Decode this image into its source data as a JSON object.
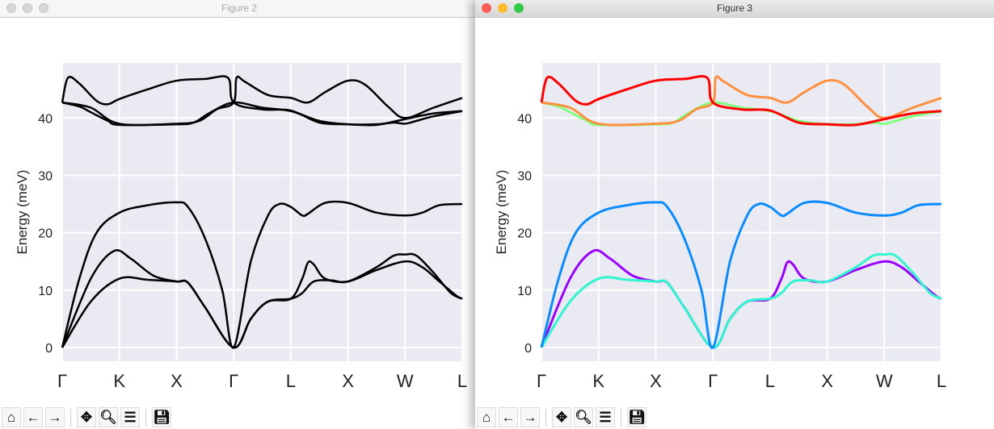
{
  "windows": [
    {
      "title": "Figure 2",
      "active": false,
      "colored": false
    },
    {
      "title": "Figure 3",
      "active": true,
      "colored": true
    }
  ],
  "toolbar": [
    {
      "icon": "home-icon",
      "glyph": "⌂",
      "name": "home-button"
    },
    {
      "icon": "arrow-left-icon",
      "glyph": "←",
      "name": "back-button"
    },
    {
      "icon": "arrow-right-icon",
      "glyph": "→",
      "name": "forward-button"
    },
    {
      "sep": true
    },
    {
      "icon": "move-icon",
      "glyph": "✥",
      "name": "pan-button"
    },
    {
      "icon": "magnifier-icon",
      "glyph": "🔍︎",
      "name": "zoom-button"
    },
    {
      "icon": "sliders-icon",
      "glyph": "☰",
      "name": "configure-subplots-button"
    },
    {
      "sep": true
    },
    {
      "icon": "save-icon",
      "glyph": "💾︎",
      "name": "save-button"
    }
  ],
  "traffic_light_colors": [
    "#fc5b57",
    "#fdbc2e",
    "#34c84a"
  ],
  "chart_data": {
    "type": "line",
    "ylabel": "Energy (meV)",
    "xticks": [
      "Γ",
      "K",
      "X",
      "Γ",
      "L",
      "X",
      "W",
      "L"
    ],
    "yticks": [
      0,
      10,
      20,
      30,
      40
    ],
    "ylim": [
      -2.4,
      49.6
    ],
    "grid": true,
    "background": "#eaeaf2",
    "series": [
      {
        "color": "#9a00ff",
        "points": [
          [
            0,
            0
          ],
          [
            0.5,
            12
          ],
          [
            0.9,
            16.8
          ],
          [
            1.2,
            15.5
          ],
          [
            1.6,
            12.5
          ],
          [
            2,
            11.5
          ],
          [
            2.2,
            11.3
          ],
          [
            2.5,
            7
          ],
          [
            3,
            0
          ],
          [
            3.3,
            5
          ],
          [
            3.6,
            8
          ],
          [
            4,
            8.5
          ],
          [
            4.2,
            12
          ],
          [
            4.3,
            14.8
          ],
          [
            4.4,
            14.5
          ],
          [
            4.6,
            12
          ],
          [
            5,
            11.5
          ],
          [
            5.5,
            13.5
          ],
          [
            6,
            15
          ],
          [
            6.3,
            14
          ],
          [
            6.6,
            11.5
          ],
          [
            6.9,
            9
          ],
          [
            7,
            8.5
          ]
        ]
      },
      {
        "color": "#2ff5d0",
        "points": [
          [
            0,
            0
          ],
          [
            0.5,
            8
          ],
          [
            1,
            12
          ],
          [
            1.5,
            11.8
          ],
          [
            2,
            11.5
          ],
          [
            2.2,
            11.3
          ],
          [
            2.5,
            7
          ],
          [
            3,
            0
          ],
          [
            3.3,
            5
          ],
          [
            3.6,
            8
          ],
          [
            4,
            8.5
          ],
          [
            4.2,
            9.5
          ],
          [
            4.4,
            11.5
          ],
          [
            4.7,
            11.7
          ],
          [
            5,
            11.5
          ],
          [
            5.5,
            14
          ],
          [
            5.8,
            16
          ],
          [
            6,
            16.2
          ],
          [
            6.2,
            16
          ],
          [
            6.5,
            13
          ],
          [
            6.8,
            9.5
          ],
          [
            7,
            8.5
          ]
        ]
      },
      {
        "color": "#0a8cff",
        "points": [
          [
            0,
            0
          ],
          [
            0.3,
            12
          ],
          [
            0.6,
            20
          ],
          [
            1,
            23.5
          ],
          [
            1.5,
            24.8
          ],
          [
            2,
            25.3
          ],
          [
            2.2,
            24.5
          ],
          [
            2.5,
            19
          ],
          [
            2.8,
            10
          ],
          [
            3,
            0
          ],
          [
            3.3,
            15
          ],
          [
            3.6,
            23
          ],
          [
            3.8,
            25
          ],
          [
            4,
            24.5
          ],
          [
            4.2,
            23
          ],
          [
            4.3,
            23.3
          ],
          [
            4.6,
            25.2
          ],
          [
            5,
            25.2
          ],
          [
            5.5,
            23.5
          ],
          [
            6,
            23
          ],
          [
            6.3,
            23.5
          ],
          [
            6.6,
            24.8
          ],
          [
            7,
            25
          ]
        ]
      },
      {
        "color": "#80ff80",
        "points": [
          [
            0,
            42.7
          ],
          [
            0.3,
            42
          ],
          [
            0.5,
            41
          ],
          [
            0.8,
            39.5
          ],
          [
            1,
            38.8
          ],
          [
            2,
            38.9
          ],
          [
            2.3,
            39.2
          ],
          [
            2.6,
            41
          ],
          [
            3,
            42.7
          ],
          [
            3.5,
            41.8
          ],
          [
            4,
            41.2
          ],
          [
            4.5,
            39.5
          ],
          [
            5,
            38.9
          ],
          [
            5.5,
            38.9
          ],
          [
            5.8,
            39.2
          ],
          [
            6,
            39
          ],
          [
            6.2,
            39.5
          ],
          [
            6.5,
            40.3
          ],
          [
            7,
            41.2
          ]
        ]
      },
      {
        "color": "#ff9040",
        "points": [
          [
            0,
            42.7
          ],
          [
            0.5,
            41.8
          ],
          [
            1,
            39
          ],
          [
            2,
            39
          ],
          [
            2.4,
            39.5
          ],
          [
            2.7,
            41.5
          ],
          [
            3,
            42.7
          ],
          [
            3.05,
            47
          ],
          [
            3.2,
            46.3
          ],
          [
            3.6,
            44
          ],
          [
            4,
            43.5
          ],
          [
            4.3,
            42.7
          ],
          [
            4.6,
            44.5
          ],
          [
            5,
            46.5
          ],
          [
            5.3,
            45.8
          ],
          [
            5.7,
            42
          ],
          [
            6,
            40
          ],
          [
            6.5,
            41.8
          ],
          [
            7,
            43.5
          ]
        ]
      },
      {
        "color": "#ff0000",
        "points": [
          [
            0,
            42.7
          ],
          [
            0.1,
            47
          ],
          [
            0.3,
            46
          ],
          [
            0.6,
            43
          ],
          [
            0.8,
            42.4
          ],
          [
            1,
            43.3
          ],
          [
            1.5,
            45
          ],
          [
            2,
            46.5
          ],
          [
            2.5,
            46.8
          ],
          [
            2.9,
            47
          ],
          [
            3,
            42.7
          ],
          [
            3.5,
            41.5
          ],
          [
            4,
            41.3
          ],
          [
            4.5,
            39.2
          ],
          [
            5,
            38.9
          ],
          [
            5.5,
            38.8
          ],
          [
            6,
            39.8
          ],
          [
            6.5,
            40.8
          ],
          [
            7,
            41.2
          ]
        ]
      }
    ]
  }
}
